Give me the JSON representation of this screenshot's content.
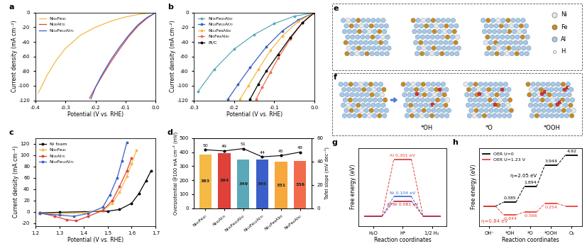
{
  "chart_data": [
    {
      "panel": "a",
      "type": "line",
      "x_label": "Potential (V vs. RHE)",
      "y_label": "Current density (mA cm⁻²)",
      "xlim": [
        -0.4,
        0
      ],
      "xticks": [
        -0.4,
        -0.3,
        -0.2,
        -0.1,
        {
          "value": 0,
          "label": "0.0"
        }
      ],
      "ylim": [
        -120,
        0
      ],
      "yticks": [
        -120,
        -100,
        -80,
        -60,
        -40,
        -20,
        0
      ],
      "legend": "upper left",
      "series": [
        {
          "name": "Ni₆₀Fe₄₀",
          "color": "#f5b945",
          "x": [
            0,
            -0.05,
            -0.1,
            -0.15,
            -0.2,
            -0.25,
            -0.3,
            -0.33,
            -0.36,
            -0.39
          ],
          "values": [
            0,
            -2,
            -6,
            -12,
            -20,
            -31,
            -49,
            -65,
            -85,
            -110
          ]
        },
        {
          "name": "Ni₃₀Al₇₀",
          "color": "#e0403a",
          "x": [
            0,
            -0.03,
            -0.06,
            -0.09,
            -0.12,
            -0.15,
            -0.18,
            -0.2,
            -0.22
          ],
          "values": [
            0,
            -8,
            -19,
            -33,
            -50,
            -68,
            -88,
            -102,
            -117
          ]
        },
        {
          "name": "Ni₁₈Fe₁₂Al₇₀",
          "color": "#3a5fc8",
          "x": [
            0,
            -0.03,
            -0.06,
            -0.09,
            -0.12,
            -0.15,
            -0.18,
            -0.2,
            -0.215
          ],
          "values": [
            0,
            -7,
            -17,
            -31,
            -47,
            -65,
            -86,
            -102,
            -118
          ]
        }
      ]
    },
    {
      "panel": "b",
      "type": "line",
      "x_label": "Potential (V vs. RHE)",
      "y_label": "Current density (mA cm⁻²)",
      "xlim": [
        -0.3,
        0
      ],
      "xticks": [
        -0.3,
        -0.2,
        -0.1,
        {
          "value": 0,
          "label": "0.0"
        }
      ],
      "ylim": [
        -120,
        0
      ],
      "yticks": [
        -120,
        -100,
        -80,
        -60,
        -40,
        -20,
        0
      ],
      "legend": "upper left",
      "series": [
        {
          "name": "Ni₃₀Fe₂₀Al₅₀",
          "color": "#5ba9b8",
          "marker": "o",
          "x": [
            0,
            -0.05,
            -0.1,
            -0.15,
            -0.2,
            -0.25,
            -0.29
          ],
          "values": [
            0,
            -5,
            -15,
            -30,
            -50,
            -78,
            -108
          ]
        },
        {
          "name": "Ni₁₈Fe₁₂Al₇₀",
          "color": "#3a5fc8",
          "marker": "o",
          "x": [
            0,
            -0.04,
            -0.08,
            -0.12,
            -0.16,
            -0.19,
            -0.215
          ],
          "values": [
            0,
            -10,
            -25,
            -47,
            -75,
            -98,
            -118
          ]
        },
        {
          "name": "Ni₁₂Fe₈Al₈₀",
          "color": "#f5b945",
          "marker": "o",
          "x": [
            0,
            -0.04,
            -0.08,
            -0.11,
            -0.14,
            -0.165,
            -0.185
          ],
          "values": [
            0,
            -12,
            -32,
            -52,
            -78,
            -100,
            -118
          ]
        },
        {
          "name": "Ni₆Fe₄Al₉₀",
          "color": "#f26b4c",
          "marker": "o",
          "x": [
            0,
            -0.03,
            -0.06,
            -0.09,
            -0.11,
            -0.13,
            -0.145
          ],
          "values": [
            0,
            -14,
            -36,
            -62,
            -82,
            -102,
            -118
          ]
        },
        {
          "name": "Pt/C",
          "color": "#000000",
          "marker": "o",
          "x": [
            0,
            -0.03,
            -0.06,
            -0.09,
            -0.12,
            -0.14,
            -0.16
          ],
          "values": [
            0,
            -14,
            -34,
            -57,
            -80,
            -98,
            -118
          ]
        }
      ]
    },
    {
      "panel": "c",
      "type": "line",
      "x_label": "Potential (V vs. RHE)",
      "y_label": "Current density (mA cm⁻²)",
      "xlim": [
        1.2,
        1.7
      ],
      "xticks": [
        1.2,
        1.3,
        1.4,
        1.5,
        1.6,
        1.7
      ],
      "ylim": [
        -25,
        130
      ],
      "yticks": [
        -20,
        0,
        20,
        40,
        60,
        80,
        100,
        120
      ],
      "legend": "upper left",
      "series": [
        {
          "name": "Ni foam",
          "color": "#000000",
          "marker": "o",
          "x": [
            1.22,
            1.3,
            1.4,
            1.5,
            1.55,
            1.6,
            1.63,
            1.66,
            1.68
          ],
          "values": [
            -2,
            -1,
            0,
            1,
            4,
            15,
            32,
            55,
            72
          ]
        },
        {
          "name": "Ni₆₀Fe₄₀",
          "color": "#f5b945",
          "marker": "o",
          "x": [
            1.22,
            1.3,
            1.4,
            1.48,
            1.52,
            1.55,
            1.58,
            1.6,
            1.62
          ],
          "values": [
            -3,
            -4,
            -2,
            3,
            15,
            35,
            62,
            85,
            108
          ]
        },
        {
          "name": "Ni₃₀Al₇₀",
          "color": "#e0403a",
          "marker": "o",
          "x": [
            1.22,
            1.28,
            1.33,
            1.37,
            1.42,
            1.48,
            1.52,
            1.55,
            1.58,
            1.6
          ],
          "values": [
            -2,
            -8,
            -14,
            -16,
            -8,
            2,
            20,
            45,
            72,
            95
          ]
        },
        {
          "name": "Ni₁₈Fe₁₂Al₇₀",
          "color": "#3a5fc8",
          "marker": "o",
          "x": [
            1.22,
            1.3,
            1.36,
            1.42,
            1.48,
            1.51,
            1.54,
            1.56,
            1.58
          ],
          "values": [
            -3,
            -6,
            -8,
            -3,
            8,
            30,
            60,
            90,
            122
          ]
        }
      ]
    },
    {
      "panel": "d",
      "type": "bar",
      "y_label": "Overpotential @100 mA cm⁻² (mV)",
      "y2_label": "Tafel slope (mV dec⁻¹)",
      "categories": [
        "Ni₆₀Fe₄₀",
        "Ni₃₀Al₇₀",
        "Ni₃₀Fe₂₀Al₅₀",
        "Ni₁₈Fe₁₂Al₇₀",
        "Ni₁₂Fe₈Al₈₀",
        "Ni₆Fe₄Al₉₀"
      ],
      "ylim": [
        0,
        500
      ],
      "yticks": [
        0,
        100,
        200,
        300,
        400,
        500
      ],
      "y2lim": [
        0,
        60
      ],
      "y2ticks": [
        0,
        20,
        40,
        60
      ],
      "series": [
        {
          "type": "bar",
          "colors": [
            "#f5b945",
            "#e0403a",
            "#5ba9b8",
            "#3a5fc8",
            "#f7a83c",
            "#f26b4c"
          ],
          "values": [
            383,
            394,
            349,
            345,
            331,
            336
          ],
          "data_labels": true
        },
        {
          "type": "line",
          "axis": "y2",
          "color": "#000000",
          "marker": "o",
          "values": [
            50,
            49,
            51,
            44,
            45,
            48
          ],
          "data_labels": true
        }
      ]
    },
    {
      "panel": "g",
      "type": "step",
      "x_label": "Reaction coordinates",
      "y_label": "Free energy (eV)",
      "categories": [
        "H₂O",
        "H*",
        "1/2 H₂"
      ],
      "ylim": [
        -0.05,
        0.36
      ],
      "yticks": [],
      "tick_labels": "x",
      "data_labels": true,
      "series": [
        {
          "color": "#e8413a",
          "line_style": "dashed",
          "values": [
            0,
            0.301,
            0
          ],
          "value_labels": [
            null,
            "Al 0.301 eV",
            null
          ]
        },
        {
          "color": "#3a6fd8",
          "line_style": "dashed",
          "values": [
            0,
            0.104,
            0
          ],
          "value_labels": [
            null,
            "Ni 0.104 eV",
            null
          ]
        },
        {
          "color": "#c0304a",
          "line_style": "dashed",
          "values": [
            0,
            0.081,
            0
          ],
          "value_labels": [
            null,
            "Al-Ni 0.081 eV",
            null
          ]
        }
      ]
    },
    {
      "panel": "h",
      "type": "step",
      "x_label": "Reaction coordinates",
      "y_label": "Free energy (eV)",
      "categories": [
        "OH⁻",
        "*OH",
        "*O",
        "*OOH",
        "O₂"
      ],
      "ylim": [
        -1.9,
        5.6
      ],
      "yticks": [],
      "tick_labels": "x",
      "data_labels": true,
      "legend": "upper left",
      "annotations": [
        "η=2.05 eV",
        "η=0.84 eV"
      ],
      "series": [
        {
          "name": "OER U=0",
          "color": "#000000",
          "line_style": "dashed",
          "values": [
            0,
            0.385,
            1.894,
            3.944,
            4.92
          ],
          "value_labels": [
            null,
            "0.385",
            "1.894",
            "3.944",
            "4.92"
          ]
        },
        {
          "name": "OER U=1.23 V",
          "color": "#e8413a",
          "line_style": "dashed",
          "values": [
            0,
            -0.844,
            -0.566,
            0.254,
            0
          ],
          "value_labels": [
            null,
            "-0.844",
            "-0.566",
            "0.254",
            null
          ]
        }
      ]
    }
  ],
  "structures": {
    "e": {
      "panel": "e",
      "legend": [
        {
          "name": "Ni",
          "color": "#e8e8e8"
        },
        {
          "name": "Fe",
          "color": "#c98a1c"
        },
        {
          "name": "Al",
          "color": "#a7c8e6"
        },
        {
          "name": "H",
          "color": "#ffffff"
        }
      ]
    },
    "f": {
      "panel": "f",
      "labels": [
        null,
        "*OH",
        "*O",
        "*OOH"
      ]
    }
  }
}
